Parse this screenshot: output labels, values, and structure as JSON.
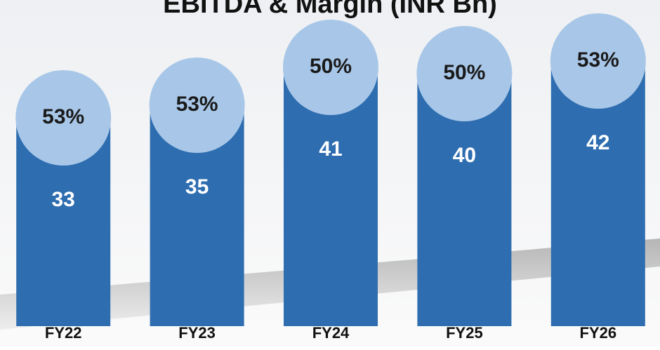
{
  "chart_data": {
    "type": "bar",
    "title": "EBITDA & Margin (INR Bn)",
    "categories": [
      "FY22",
      "FY23",
      "FY24",
      "FY25",
      "FY26"
    ],
    "values": [
      33,
      35,
      41,
      40,
      42
    ],
    "color": "#2e6db0",
    "margin": {
      "values": [
        53,
        53,
        50,
        50,
        53
      ],
      "value_labels": [
        "53%",
        "53%",
        "50%",
        "50%",
        "53%"
      ],
      "color": "#a8c7e8"
    },
    "ylim": [
      0,
      50
    ]
  }
}
